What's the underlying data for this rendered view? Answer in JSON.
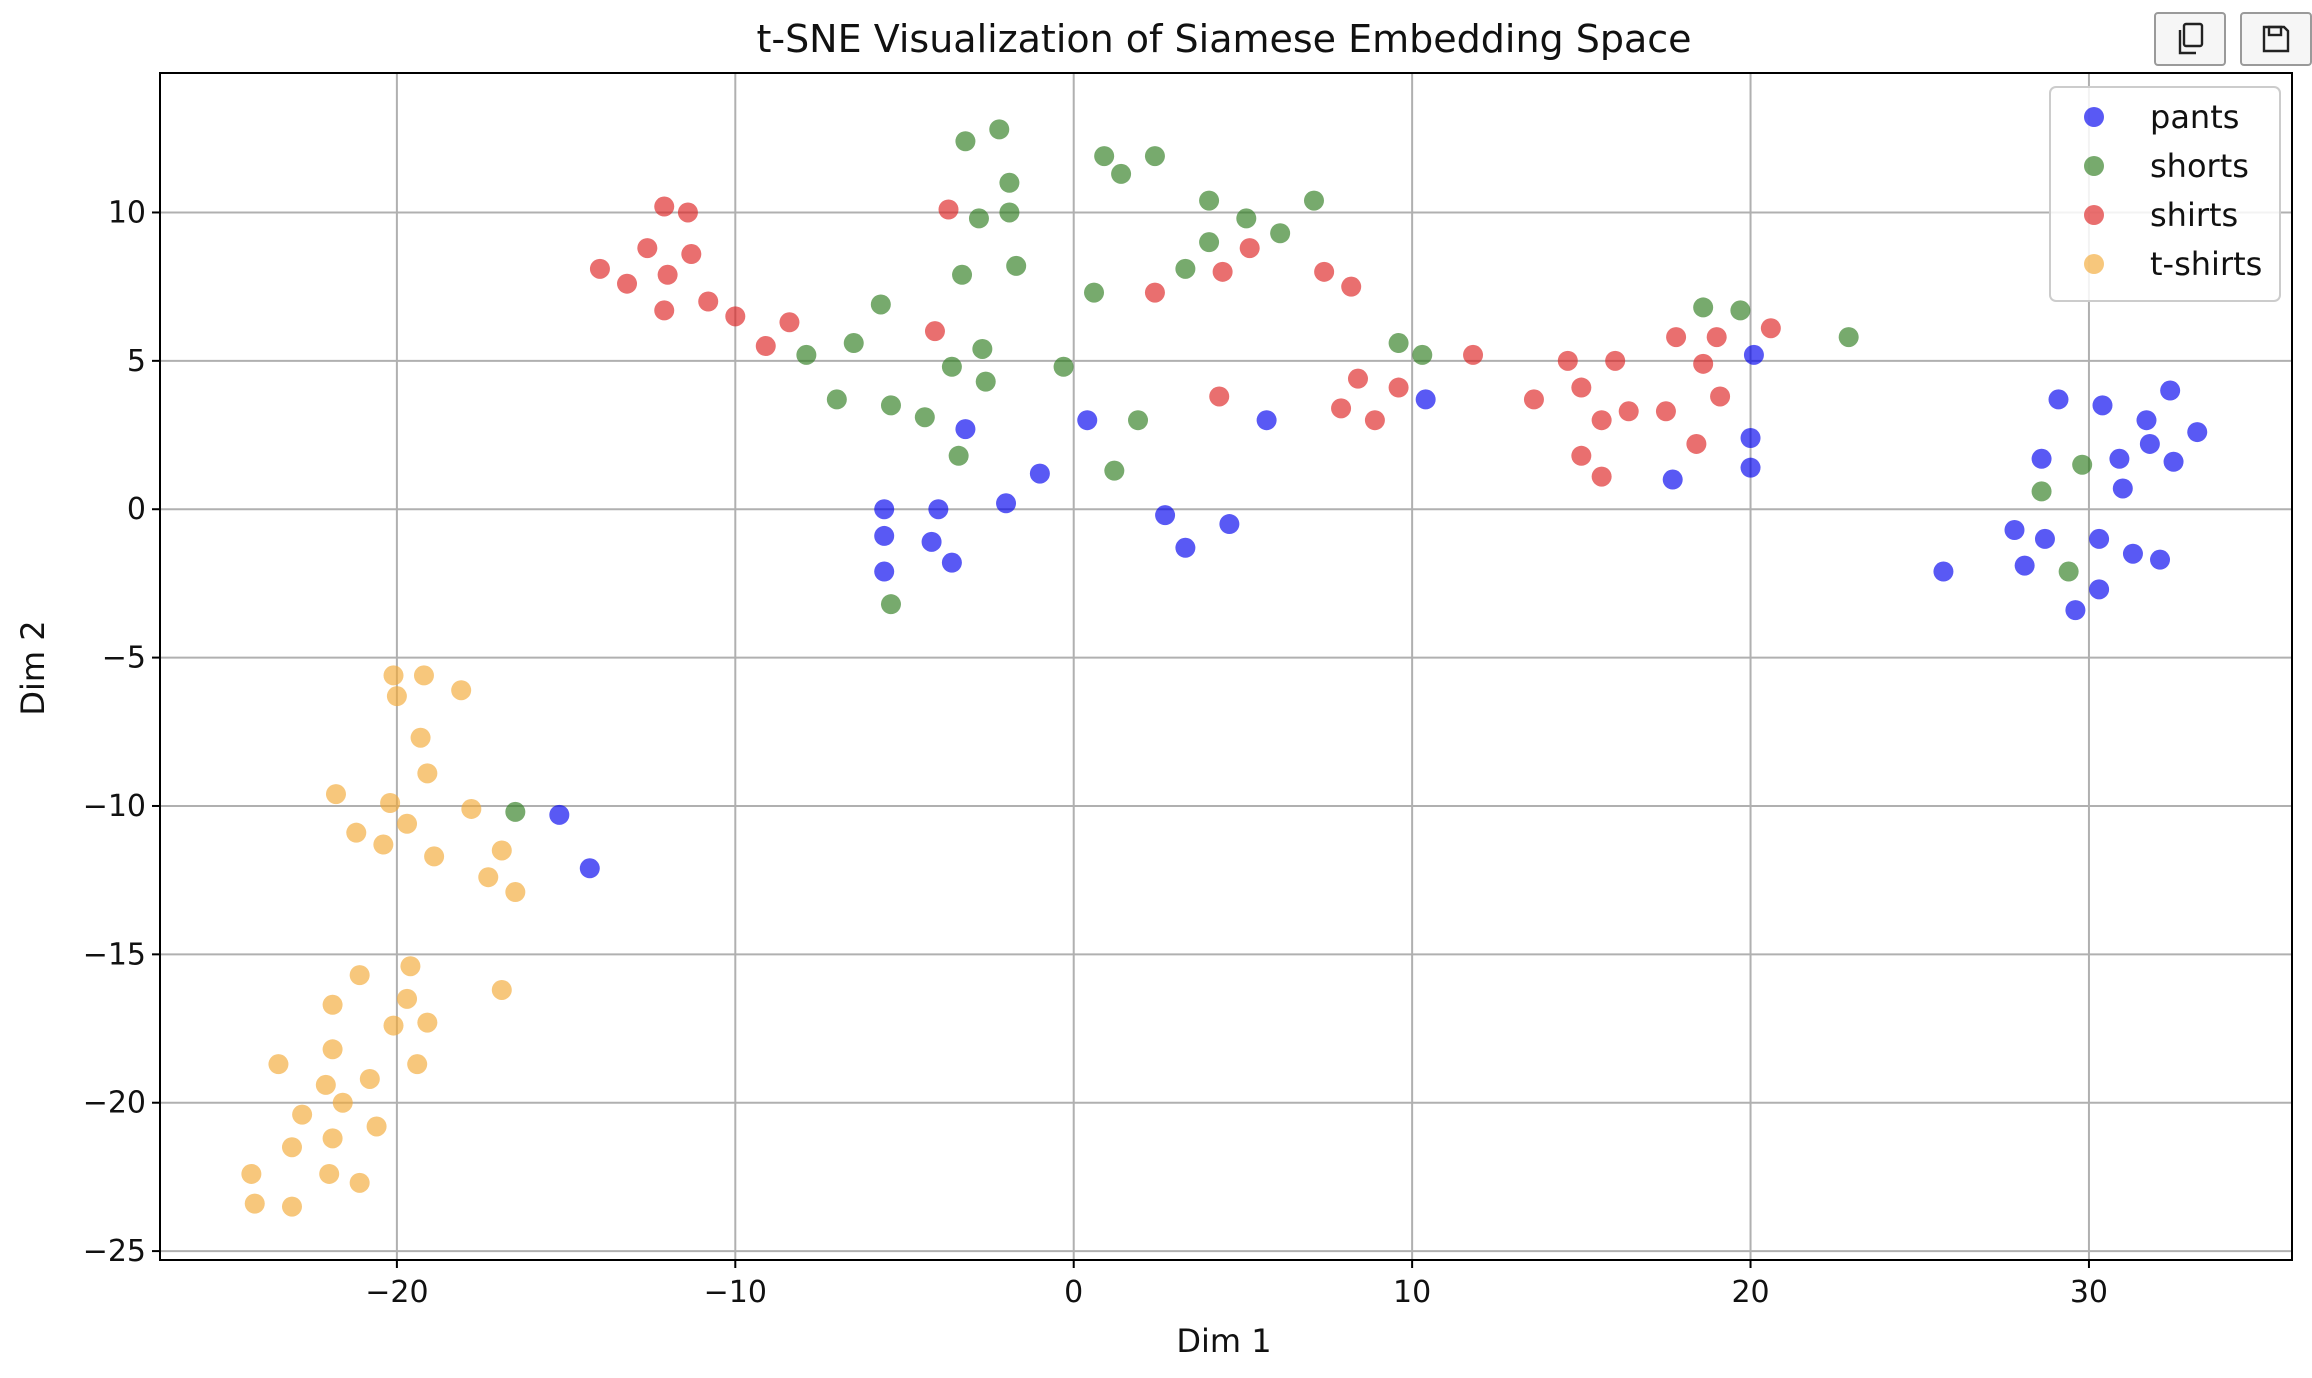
{
  "toolbar": {
    "buttons": [
      {
        "name": "copy-button",
        "icon": "copy-icon"
      },
      {
        "name": "save-button",
        "icon": "save-icon"
      }
    ]
  },
  "chart_data": {
    "type": "scatter",
    "title": "t-SNE Visualization of Siamese Embedding Space",
    "xlabel": "Dim 1",
    "ylabel": "Dim 2",
    "xlim": [
      -27,
      36
    ],
    "ylim": [
      -25.3,
      14.7
    ],
    "xticks": [
      -20,
      -10,
      0,
      10,
      20,
      30
    ],
    "yticks": [
      -25,
      -20,
      -15,
      -10,
      -5,
      0,
      5,
      10
    ],
    "grid": true,
    "legend_position": "top-right",
    "series": [
      {
        "name": "pants",
        "color": "#0000ee",
        "points": [
          [
            -5.6,
            0
          ],
          [
            -5.6,
            -0.9
          ],
          [
            -5.6,
            -2.1
          ],
          [
            -4,
            0
          ],
          [
            -4.2,
            -1.1
          ],
          [
            -3.6,
            -1.8
          ],
          [
            -3.2,
            2.7
          ],
          [
            -2,
            0.2
          ],
          [
            -1,
            1.2
          ],
          [
            0.4,
            3
          ],
          [
            2.7,
            -0.2
          ],
          [
            3.3,
            -1.3
          ],
          [
            4.6,
            -0.5
          ],
          [
            5.7,
            3
          ],
          [
            10.4,
            3.7
          ],
          [
            17.7,
            1
          ],
          [
            20,
            2.4
          ],
          [
            20,
            1.4
          ],
          [
            20.1,
            5.2
          ],
          [
            25.7,
            -2.1
          ],
          [
            27.8,
            -0.7
          ],
          [
            28.1,
            -1.9
          ],
          [
            28.6,
            1.7
          ],
          [
            28.7,
            -1
          ],
          [
            29.1,
            3.7
          ],
          [
            29.6,
            -3.4
          ],
          [
            30.3,
            -1
          ],
          [
            30.3,
            -2.7
          ],
          [
            30.4,
            3.5
          ],
          [
            30.9,
            1.7
          ],
          [
            31,
            0.7
          ],
          [
            31.3,
            -1.5
          ],
          [
            31.7,
            3
          ],
          [
            31.8,
            2.2
          ],
          [
            32.1,
            -1.7
          ],
          [
            32.4,
            4
          ],
          [
            32.5,
            1.6
          ],
          [
            33.2,
            2.6
          ],
          [
            -15.2,
            -10.3
          ],
          [
            -14.3,
            -12.1
          ]
        ]
      },
      {
        "name": "shorts",
        "color": "#2e7d1f",
        "points": [
          [
            -3.2,
            12.4
          ],
          [
            -2.2,
            12.8
          ],
          [
            -1.9,
            11
          ],
          [
            -1.9,
            10
          ],
          [
            -2.8,
            9.8
          ],
          [
            -3.3,
            7.9
          ],
          [
            -1.7,
            8.2
          ],
          [
            -5.7,
            6.9
          ],
          [
            -6.5,
            5.6
          ],
          [
            -7.9,
            5.2
          ],
          [
            -3.6,
            4.8
          ],
          [
            -2.7,
            5.4
          ],
          [
            -2.6,
            4.3
          ],
          [
            -7,
            3.7
          ],
          [
            -5.4,
            3.5
          ],
          [
            -4.4,
            3.1
          ],
          [
            -3.4,
            1.8
          ],
          [
            -5.4,
            -3.2
          ],
          [
            -0.3,
            4.8
          ],
          [
            0.6,
            7.3
          ],
          [
            0.9,
            11.9
          ],
          [
            1.4,
            11.3
          ],
          [
            2.4,
            11.9
          ],
          [
            1.2,
            1.3
          ],
          [
            1.9,
            3
          ],
          [
            3.3,
            8.1
          ],
          [
            4,
            10.4
          ],
          [
            4,
            9
          ],
          [
            5.1,
            9.8
          ],
          [
            6.1,
            9.3
          ],
          [
            7.1,
            10.4
          ],
          [
            9.6,
            5.6
          ],
          [
            10.3,
            5.2
          ],
          [
            18.6,
            6.8
          ],
          [
            19.7,
            6.7
          ],
          [
            22.9,
            5.8
          ],
          [
            28.6,
            0.6
          ],
          [
            29.4,
            -2.1
          ],
          [
            29.8,
            1.5
          ],
          [
            -16.5,
            -10.2
          ]
        ]
      },
      {
        "name": "shirts",
        "color": "#dd2222",
        "points": [
          [
            -12.1,
            10.2
          ],
          [
            -11.4,
            10
          ],
          [
            -14,
            8.1
          ],
          [
            -13.2,
            7.6
          ],
          [
            -12.6,
            8.8
          ],
          [
            -12,
            7.9
          ],
          [
            -11.3,
            8.6
          ],
          [
            -12.1,
            6.7
          ],
          [
            -10.8,
            7
          ],
          [
            -10,
            6.5
          ],
          [
            -8.4,
            6.3
          ],
          [
            -9.1,
            5.5
          ],
          [
            -3.7,
            10.1
          ],
          [
            -4.1,
            6
          ],
          [
            2.4,
            7.3
          ],
          [
            4.4,
            8
          ],
          [
            5.2,
            8.8
          ],
          [
            4.3,
            3.8
          ],
          [
            7.4,
            8
          ],
          [
            8.2,
            7.5
          ],
          [
            8.4,
            4.4
          ],
          [
            7.9,
            3.4
          ],
          [
            8.9,
            3
          ],
          [
            9.6,
            4.1
          ],
          [
            11.8,
            5.2
          ],
          [
            13.6,
            3.7
          ],
          [
            14.6,
            5
          ],
          [
            15,
            4.1
          ],
          [
            15.6,
            3
          ],
          [
            15,
            1.8
          ],
          [
            15.6,
            1.1
          ],
          [
            16,
            5
          ],
          [
            16.4,
            3.3
          ],
          [
            17.5,
            3.3
          ],
          [
            17.8,
            5.8
          ],
          [
            18.4,
            2.2
          ],
          [
            18.6,
            4.9
          ],
          [
            19,
            5.8
          ],
          [
            19.1,
            3.8
          ],
          [
            20.6,
            6.1
          ]
        ]
      },
      {
        "name": "t-shirts",
        "color": "#f2a935",
        "points": [
          [
            -20.1,
            -5.6
          ],
          [
            -20,
            -6.3
          ],
          [
            -19.2,
            -5.6
          ],
          [
            -18.1,
            -6.1
          ],
          [
            -19.3,
            -7.7
          ],
          [
            -19.1,
            -8.9
          ],
          [
            -21.8,
            -9.6
          ],
          [
            -20.2,
            -9.9
          ],
          [
            -19.7,
            -10.6
          ],
          [
            -17.8,
            -10.1
          ],
          [
            -21.2,
            -10.9
          ],
          [
            -20.4,
            -11.3
          ],
          [
            -18.9,
            -11.7
          ],
          [
            -16.9,
            -11.5
          ],
          [
            -17.3,
            -12.4
          ],
          [
            -16.5,
            -12.9
          ],
          [
            -21.1,
            -15.7
          ],
          [
            -19.6,
            -15.4
          ],
          [
            -16.9,
            -16.2
          ],
          [
            -21.9,
            -16.7
          ],
          [
            -19.7,
            -16.5
          ],
          [
            -20.1,
            -17.4
          ],
          [
            -19.1,
            -17.3
          ],
          [
            -21.9,
            -18.2
          ],
          [
            -23.5,
            -18.7
          ],
          [
            -19.4,
            -18.7
          ],
          [
            -22.1,
            -19.4
          ],
          [
            -20.8,
            -19.2
          ],
          [
            -21.6,
            -20
          ],
          [
            -22.8,
            -20.4
          ],
          [
            -20.6,
            -20.8
          ],
          [
            -21.9,
            -21.2
          ],
          [
            -23.1,
            -21.5
          ],
          [
            -24.3,
            -22.4
          ],
          [
            -22,
            -22.4
          ],
          [
            -21.1,
            -22.7
          ],
          [
            -24.2,
            -23.4
          ],
          [
            -23.1,
            -23.5
          ]
        ]
      }
    ]
  }
}
